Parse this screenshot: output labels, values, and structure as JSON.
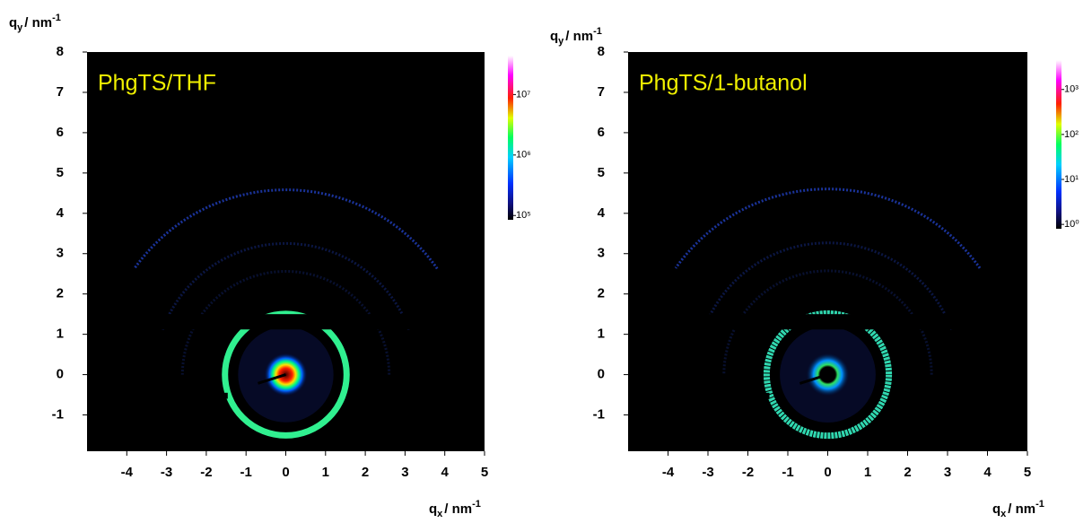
{
  "chart_data": [
    {
      "type": "image",
      "title": "PhgTS/THF",
      "xlabel": {
        "symbol": "q",
        "subscript": "x",
        "unit": "/ nm",
        "superscript": "-1"
      },
      "ylabel": {
        "symbol": "q",
        "subscript": "y",
        "unit": "/ nm",
        "superscript": "-1"
      },
      "xlim": [
        -5,
        5
      ],
      "ylim": [
        -1.9,
        8
      ],
      "xticks": [
        -4,
        -3,
        -2,
        -1,
        0,
        1,
        2,
        3,
        4,
        5
      ],
      "yticks": [
        -1,
        0,
        1,
        2,
        3,
        4,
        5,
        6,
        7,
        8
      ],
      "colorbar": {
        "scale": "log",
        "clim": [
          85000,
          44000000
        ],
        "ticks": [
          {
            "value": 100000,
            "label": "10⁵"
          },
          {
            "value": 1000000,
            "label": "10⁶"
          },
          {
            "value": 10000000,
            "label": "10⁷"
          }
        ]
      }
    },
    {
      "type": "image",
      "title": "PhgTS/1-butanol",
      "xlabel": {
        "symbol": "q",
        "subscript": "x",
        "unit": "/ nm",
        "superscript": "-1"
      },
      "ylabel": {
        "symbol": "q",
        "subscript": "y",
        "unit": "/ nm",
        "superscript": "-1"
      },
      "xlim": [
        -5,
        5
      ],
      "ylim": [
        -1.9,
        8
      ],
      "xticks": [
        -4,
        -3,
        -2,
        -1,
        0,
        1,
        2,
        3,
        4,
        5
      ],
      "yticks": [
        -1,
        0,
        1,
        2,
        3,
        4,
        5,
        6,
        7,
        8
      ],
      "colorbar": {
        "scale": "log",
        "clim": [
          0.8,
          4500
        ],
        "ticks": [
          {
            "value": 1,
            "label": "10⁰"
          },
          {
            "value": 10,
            "label": "10¹"
          },
          {
            "value": 100,
            "label": "10²"
          },
          {
            "value": 1000,
            "label": "10³"
          }
        ]
      }
    }
  ]
}
